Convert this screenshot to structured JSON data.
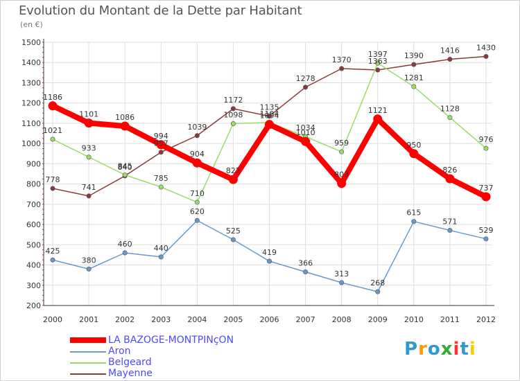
{
  "title": "Evolution du Montant de la Dette par Habitant",
  "subtitle": "(en €)",
  "logo_text": "Proxiti",
  "chart_data": {
    "type": "line",
    "x": [
      "2000",
      "2001",
      "2002",
      "2003",
      "2004",
      "2005",
      "2006",
      "2007",
      "2008",
      "2009",
      "2010",
      "2011",
      "2012"
    ],
    "ylim": [
      200,
      1500
    ],
    "yticks": [
      200,
      300,
      400,
      500,
      600,
      700,
      800,
      900,
      1000,
      1100,
      1200,
      1300,
      1400,
      1500
    ],
    "grid": true,
    "legend_position": "bottom-left",
    "series": [
      {
        "name": "LA BAZOGE-MONTPINçON",
        "color": "#ff0000",
        "values": [
          1186,
          1101,
          1086,
          994,
          904,
          822,
          1094,
          1010,
          803,
          1121,
          950,
          826,
          737
        ]
      },
      {
        "name": "Aron",
        "color": "#6699cc",
        "values": [
          425,
          380,
          460,
          440,
          620,
          525,
          419,
          366,
          313,
          268,
          615,
          571,
          529
        ]
      },
      {
        "name": "Belgeard",
        "color": "#99dd66",
        "values": [
          1021,
          933,
          845,
          785,
          710,
          1098,
          1104,
          1034,
          959,
          1397,
          1281,
          1128,
          976
        ]
      },
      {
        "name": "Mayenne",
        "color": "#8b3a3a",
        "values": [
          778,
          741,
          840,
          957,
          1039,
          1172,
          1135,
          1278,
          1370,
          1363,
          1390,
          1416,
          1430
        ]
      }
    ]
  }
}
